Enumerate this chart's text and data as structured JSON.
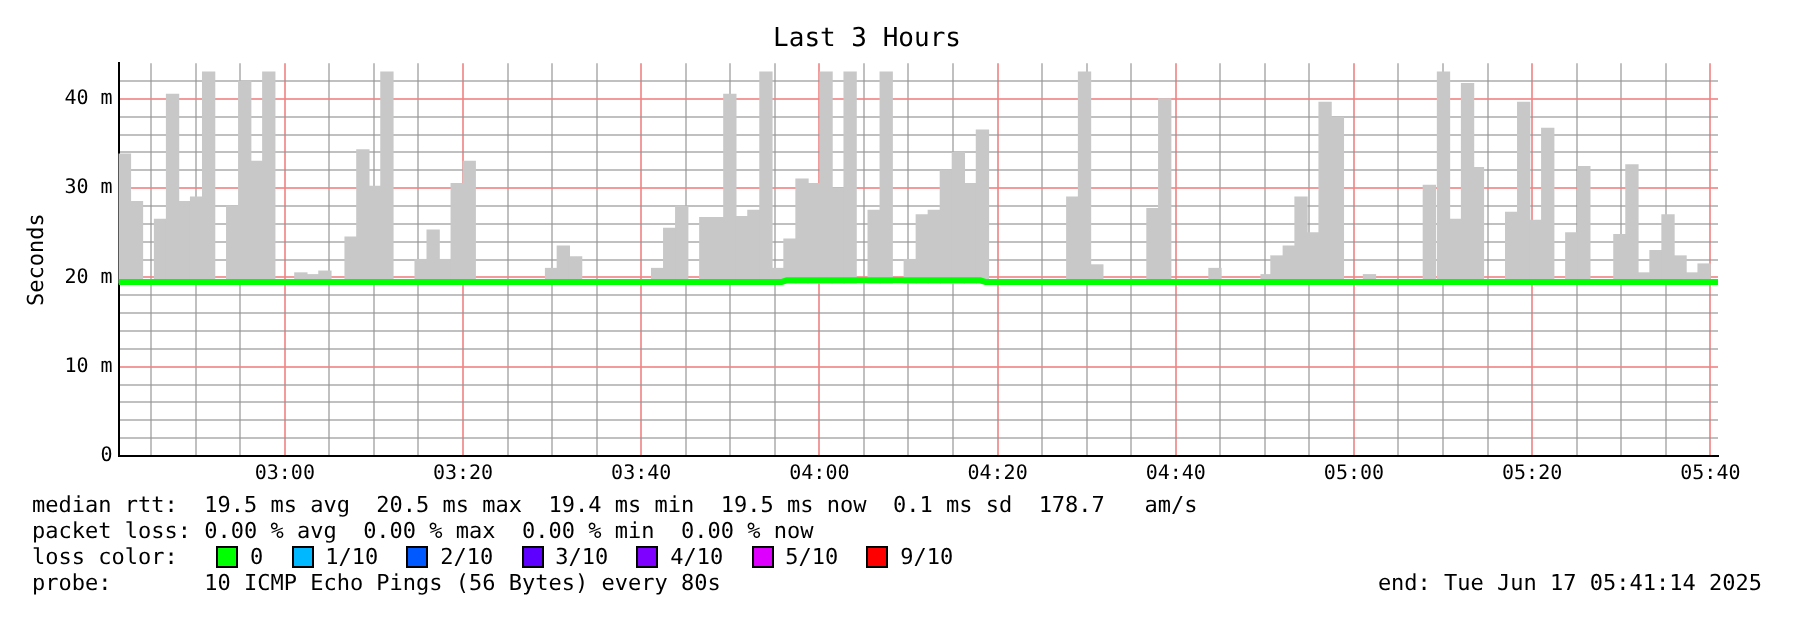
{
  "chart_data": {
    "type": "bar",
    "title": "Last 3 Hours",
    "ylabel": "Seconds",
    "xlim": [
      2.689,
      5.681
    ],
    "xticks": [
      {
        "value": 2.75,
        "label": null
      },
      {
        "value": 2.8333,
        "label": null
      },
      {
        "value": 2.9167,
        "label": null
      },
      {
        "value": 3,
        "label": "03:00"
      },
      {
        "value": 3.0833,
        "label": null
      },
      {
        "value": 3.1667,
        "label": null
      },
      {
        "value": 3.25,
        "label": null
      },
      {
        "value": 3.3333,
        "label": "03:20"
      },
      {
        "value": 3.4167,
        "label": null
      },
      {
        "value": 3.5,
        "label": null
      },
      {
        "value": 3.5833,
        "label": null
      },
      {
        "value": 3.6667,
        "label": "03:40"
      },
      {
        "value": 3.75,
        "label": null
      },
      {
        "value": 3.8333,
        "label": null
      },
      {
        "value": 3.9167,
        "label": null
      },
      {
        "value": 4,
        "label": "04:00"
      },
      {
        "value": 4.0833,
        "label": null
      },
      {
        "value": 4.1667,
        "label": null
      },
      {
        "value": 4.25,
        "label": null
      },
      {
        "value": 4.3333,
        "label": "04:20"
      },
      {
        "value": 4.4167,
        "label": null
      },
      {
        "value": 4.5,
        "label": null
      },
      {
        "value": 4.5833,
        "label": null
      },
      {
        "value": 4.6667,
        "label": "04:40"
      },
      {
        "value": 4.75,
        "label": null
      },
      {
        "value": 4.8333,
        "label": null
      },
      {
        "value": 4.9167,
        "label": null
      },
      {
        "value": 5,
        "label": "05:00"
      },
      {
        "value": 5.0833,
        "label": null
      },
      {
        "value": 5.1667,
        "label": null
      },
      {
        "value": 5.25,
        "label": null
      },
      {
        "value": 5.3333,
        "label": "05:20"
      },
      {
        "value": 5.4167,
        "label": null
      },
      {
        "value": 5.5,
        "label": null
      },
      {
        "value": 5.5833,
        "label": null
      },
      {
        "value": 5.6667,
        "label": "05:40"
      }
    ],
    "ylim": [
      0,
      44
    ],
    "yticks": [
      0,
      {
        "value": 2,
        "label": null
      },
      {
        "value": 4,
        "label": null
      },
      {
        "value": 6,
        "label": null
      },
      {
        "value": 8,
        "label": null
      },
      {
        "value": 10,
        "label": "10 m"
      },
      {
        "value": 12,
        "label": null
      },
      {
        "value": 14,
        "label": null
      },
      {
        "value": 16,
        "label": null
      },
      {
        "value": 18,
        "label": null
      },
      {
        "value": 20,
        "label": "20 m"
      },
      {
        "value": 22,
        "label": null
      },
      {
        "value": 24,
        "label": null
      },
      {
        "value": 26,
        "label": null
      },
      {
        "value": 28,
        "label": null
      },
      {
        "value": 30,
        "label": "30 m"
      },
      {
        "value": 32,
        "label": null
      },
      {
        "value": 34,
        "label": null
      },
      {
        "value": 36,
        "label": null
      },
      {
        "value": 38,
        "label": null
      },
      {
        "value": 40,
        "label": "40 m"
      },
      {
        "value": 42,
        "label": null
      }
    ],
    "grid": true,
    "legend": "bottom",
    "legend_title": "loss color:",
    "series": [
      {
        "color": "#c8c8c8",
        "x": [
          2.7,
          2.7225,
          2.7675,
          2.79,
          2.8125,
          2.835,
          2.8575,
          2.9025,
          2.925,
          2.9475,
          2.97,
          3.03,
          3.0525,
          3.075,
          3.124,
          3.146,
          3.169,
          3.191,
          3.255,
          3.2775,
          3.3,
          3.3225,
          3.345,
          3.499,
          3.521,
          3.544,
          3.6975,
          3.72,
          3.7425,
          3.7875,
          3.81,
          3.8325,
          3.855,
          3.8775,
          3.9,
          3.9225,
          3.945,
          3.9675,
          3.99,
          4.0125,
          4.035,
          4.0575,
          4.1025,
          4.125,
          4.17,
          4.1925,
          4.215,
          4.2375,
          4.26,
          4.2825,
          4.305,
          4.474,
          4.496,
          4.519,
          4.624,
          4.646,
          4.74,
          4.8375,
          4.856,
          4.879,
          4.901,
          4.924,
          4.946,
          4.969,
          5.029,
          5.141,
          5.1675,
          5.19,
          5.2125,
          5.231,
          5.295,
          5.3175,
          5.34,
          5.3625,
          5.4075,
          5.43,
          5.4975,
          5.52,
          5.5425,
          5.565,
          5.5875,
          5.61,
          5.6325,
          5.655
        ],
        "base": [
          19.4,
          19.4,
          19.4,
          19.4,
          19.4,
          19.4,
          19.4,
          19.4,
          19.4,
          19.4,
          19.4,
          19.4,
          19.4,
          19.4,
          19.4,
          19.4,
          19.4,
          19.4,
          19.4,
          19.4,
          19.4,
          19.4,
          19.4,
          19.4,
          19.4,
          19.4,
          19.4,
          19.4,
          19.4,
          19.4,
          19.4,
          19.4,
          19.4,
          19.4,
          19.4,
          19.4,
          19.4,
          19.4,
          19.4,
          19.4,
          19.4,
          19.4,
          19.4,
          19.4,
          19.4,
          19.4,
          19.4,
          19.4,
          19.4,
          19.4,
          19.4,
          19.4,
          19.4,
          19.4,
          19.4,
          19.4,
          19.4,
          19.4,
          19.4,
          19.4,
          19.4,
          19.4,
          19.4,
          19.4,
          19.4,
          19.4,
          19.4,
          19.4,
          19.4,
          19.4,
          19.4,
          19.4,
          19.4,
          19.4,
          19.4,
          19.4,
          19.4,
          19.4,
          19.4,
          19.4,
          19.4,
          19.4,
          19.4,
          19.4
        ],
        "values": [
          14.4,
          9.1,
          7.1,
          21.1,
          9.1,
          9.6,
          23.6,
          8.6,
          22.6,
          13.6,
          23.6,
          1.1,
          0.9,
          1.3,
          5.1,
          14.9,
          10.8,
          23.6,
          2.6,
          5.9,
          2.6,
          11.1,
          13.6,
          1.6,
          4.1,
          2.9,
          1.6,
          6.1,
          8.6,
          7.3,
          7.3,
          21.1,
          7.4,
          8.1,
          23.6,
          1.6,
          4.9,
          11.6,
          11.1,
          23.6,
          10.6,
          23.6,
          8.1,
          23.6,
          2.6,
          7.6,
          8.1,
          12.6,
          14.6,
          11.1,
          17.1,
          9.6,
          23.6,
          2,
          8.3,
          20.6,
          1.6,
          0.9,
          3,
          4.1,
          9.6,
          5.6,
          20.2,
          18.5,
          0.9,
          10.9,
          23.6,
          7.1,
          22.3,
          12.9,
          7.9,
          20.2,
          7,
          17.3,
          5.6,
          13,
          5.4,
          13.2,
          1.1,
          3.6,
          7.6,
          3,
          1.1,
          2.1
        ]
      },
      {
        "type": "line",
        "name": "0",
        "color": "#00ff00",
        "x": [
          2.689,
          3.93,
          3.94,
          4.3,
          4.31,
          5.681
        ],
        "values": [
          19.5,
          19.5,
          19.7,
          19.7,
          19.5,
          19.5
        ]
      },
      {
        "type": "line",
        "name": "1/10",
        "color": "#00b8ff"
      },
      {
        "type": "line",
        "name": "2/10",
        "color": "#0059ff"
      },
      {
        "type": "line",
        "name": "3/10",
        "color": "#5e00ff"
      },
      {
        "type": "line",
        "name": "4/10",
        "color": "#7e00ff"
      },
      {
        "type": "line",
        "name": "5/10",
        "color": "#dd00ff"
      },
      {
        "type": "line",
        "name": "9/10",
        "color": "#ff0000"
      }
    ],
    "annotations": [
      "median rtt:  19.5 ms avg  20.5 ms max  19.4 ms min  19.5 ms now  0.1 ms sd  178.7   am/s",
      "packet loss: 0.00 % avg  0.00 % max  0.00 % min  0.00 % now",
      "probe:       10 ICMP Echo Pings (56 Bytes) every 80s",
      "end: Tue Jun 17 05:41:14 2025"
    ]
  }
}
